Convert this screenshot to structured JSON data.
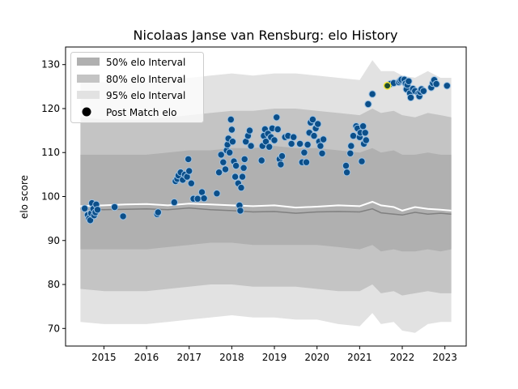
{
  "chart_data": {
    "type": "scatter",
    "title": "Nicolaas Janse van Rensburg: elo History",
    "xlabel": "",
    "ylabel": "elo score",
    "xlim": [
      2014.1,
      2023.5
    ],
    "ylim": [
      66,
      134
    ],
    "x_ticks": [
      {
        "value": 2015,
        "label": "2015"
      },
      {
        "value": 2016,
        "label": "2016"
      },
      {
        "value": 2017,
        "label": "2017"
      },
      {
        "value": 2018,
        "label": "2018"
      },
      {
        "value": 2019,
        "label": "2019"
      },
      {
        "value": 2020,
        "label": "2020"
      },
      {
        "value": 2021,
        "label": "2021"
      },
      {
        "value": 2022,
        "label": "2022"
      },
      {
        "value": 2023,
        "label": "2023"
      }
    ],
    "y_ticks": [
      70,
      80,
      90,
      100,
      110,
      120,
      130
    ],
    "grid": false,
    "legend": {
      "position": "top-left",
      "entries": [
        {
          "label": "50% elo Interval",
          "color": "#b0b0b0"
        },
        {
          "label": "80% elo Interval",
          "color": "#c4c4c4"
        },
        {
          "label": "95% elo Interval",
          "color": "#e2e2e2"
        },
        {
          "label": "Post Match elo",
          "color": "#000000"
        }
      ]
    },
    "colors": {
      "point_fill": "#0b4f8a",
      "point_edge": "#9ec4e6",
      "latest_point_fill": "#1f4e2e",
      "latest_point_edge": "#f2e63b",
      "mean_line": "#ffffff",
      "median_line": "#808080"
    },
    "bands": {
      "x": [
        2014.45,
        2015.0,
        2015.5,
        2016.0,
        2016.5,
        2017.0,
        2017.5,
        2018.0,
        2018.5,
        2019.0,
        2019.5,
        2020.0,
        2020.5,
        2021.0,
        2021.3,
        2021.5,
        2021.8,
        2022.0,
        2022.3,
        2022.6,
        2022.9,
        2023.15
      ],
      "p95_hi": [
        126.5,
        126.0,
        126.0,
        126.0,
        126.5,
        127.0,
        127.5,
        128.0,
        127.5,
        128.0,
        128.0,
        127.5,
        127.0,
        126.5,
        131.0,
        128.5,
        128.5,
        127.5,
        127.0,
        128.5,
        127.0,
        127.0
      ],
      "p80_hi": [
        118.0,
        117.5,
        117.5,
        117.5,
        118.0,
        118.5,
        119.0,
        119.5,
        119.5,
        120.0,
        120.0,
        119.5,
        119.0,
        118.5,
        120.0,
        119.0,
        119.5,
        118.5,
        118.0,
        119.0,
        118.5,
        118.0
      ],
      "p50_hi": [
        109.5,
        109.5,
        109.5,
        109.5,
        110.0,
        110.5,
        110.5,
        111.0,
        111.0,
        111.5,
        111.0,
        111.0,
        110.5,
        110.0,
        111.0,
        110.0,
        110.5,
        109.5,
        109.5,
        110.0,
        109.5,
        109.5
      ],
      "p50_lo": [
        88.0,
        88.0,
        88.0,
        88.0,
        88.5,
        89.0,
        89.5,
        89.5,
        89.0,
        89.0,
        89.0,
        89.0,
        88.5,
        88.0,
        89.0,
        87.5,
        88.0,
        87.5,
        87.5,
        88.0,
        87.5,
        88.0
      ],
      "p80_lo": [
        79.0,
        78.5,
        78.5,
        78.5,
        79.0,
        79.5,
        80.0,
        80.0,
        79.5,
        79.5,
        79.5,
        79.0,
        78.5,
        78.5,
        80.0,
        78.0,
        78.5,
        77.5,
        78.0,
        78.5,
        78.0,
        78.0
      ],
      "p95_lo": [
        71.5,
        71.0,
        71.0,
        71.0,
        71.5,
        72.0,
        72.5,
        73.0,
        72.5,
        72.5,
        72.0,
        72.0,
        71.0,
        70.5,
        73.5,
        71.0,
        71.5,
        69.5,
        69.0,
        71.0,
        71.5,
        71.5
      ],
      "mean": [
        97.8,
        98.0,
        98.2,
        98.3,
        98.0,
        98.4,
        98.2,
        98.0,
        97.8,
        98.0,
        97.5,
        97.7,
        98.0,
        97.8,
        98.8,
        98.0,
        97.6,
        96.8,
        97.6,
        97.2,
        97.0,
        96.8
      ],
      "median": [
        97.2,
        97.0,
        97.1,
        97.2,
        97.0,
        97.4,
        97.0,
        96.8,
        96.5,
        96.6,
        96.2,
        96.5,
        96.6,
        96.5,
        97.2,
        96.3,
        96.0,
        95.8,
        96.4,
        96.0,
        96.2,
        96.0
      ]
    },
    "points": [
      {
        "x": 2014.55,
        "y": 97.3
      },
      {
        "x": 2014.62,
        "y": 95.8
      },
      {
        "x": 2014.65,
        "y": 95.0
      },
      {
        "x": 2014.68,
        "y": 94.6
      },
      {
        "x": 2014.7,
        "y": 96.2
      },
      {
        "x": 2014.72,
        "y": 98.5
      },
      {
        "x": 2014.75,
        "y": 97.2
      },
      {
        "x": 2014.77,
        "y": 95.7
      },
      {
        "x": 2014.8,
        "y": 96.4
      },
      {
        "x": 2014.82,
        "y": 98.2
      },
      {
        "x": 2014.85,
        "y": 97.0
      },
      {
        "x": 2015.25,
        "y": 97.6
      },
      {
        "x": 2015.45,
        "y": 95.5
      },
      {
        "x": 2016.25,
        "y": 96.0
      },
      {
        "x": 2016.27,
        "y": 96.4
      },
      {
        "x": 2016.65,
        "y": 98.7
      },
      {
        "x": 2016.68,
        "y": 103.5
      },
      {
        "x": 2016.72,
        "y": 104.0
      },
      {
        "x": 2016.75,
        "y": 104.8
      },
      {
        "x": 2016.8,
        "y": 105.5
      },
      {
        "x": 2016.85,
        "y": 103.8
      },
      {
        "x": 2016.9,
        "y": 105.0
      },
      {
        "x": 2016.95,
        "y": 104.5
      },
      {
        "x": 2016.98,
        "y": 108.5
      },
      {
        "x": 2017.0,
        "y": 105.8
      },
      {
        "x": 2017.05,
        "y": 103.0
      },
      {
        "x": 2017.1,
        "y": 99.5
      },
      {
        "x": 2017.2,
        "y": 99.5
      },
      {
        "x": 2017.3,
        "y": 101.0
      },
      {
        "x": 2017.35,
        "y": 99.6
      },
      {
        "x": 2017.65,
        "y": 100.7
      },
      {
        "x": 2017.7,
        "y": 105.5
      },
      {
        "x": 2017.75,
        "y": 109.5
      },
      {
        "x": 2017.8,
        "y": 107.8
      },
      {
        "x": 2017.85,
        "y": 106.2
      },
      {
        "x": 2017.88,
        "y": 110.5
      },
      {
        "x": 2017.9,
        "y": 111.8
      },
      {
        "x": 2017.92,
        "y": 113.2
      },
      {
        "x": 2017.95,
        "y": 110.0
      },
      {
        "x": 2017.98,
        "y": 117.5
      },
      {
        "x": 2018.0,
        "y": 115.2
      },
      {
        "x": 2018.02,
        "y": 112.5
      },
      {
        "x": 2018.05,
        "y": 108.0
      },
      {
        "x": 2018.08,
        "y": 104.5
      },
      {
        "x": 2018.1,
        "y": 107.0
      },
      {
        "x": 2018.15,
        "y": 103.0
      },
      {
        "x": 2018.18,
        "y": 98.0
      },
      {
        "x": 2018.2,
        "y": 96.8
      },
      {
        "x": 2018.22,
        "y": 102.0
      },
      {
        "x": 2018.25,
        "y": 104.5
      },
      {
        "x": 2018.28,
        "y": 106.5
      },
      {
        "x": 2018.3,
        "y": 108.5
      },
      {
        "x": 2018.33,
        "y": 112.5
      },
      {
        "x": 2018.38,
        "y": 113.8
      },
      {
        "x": 2018.42,
        "y": 115.0
      },
      {
        "x": 2018.45,
        "y": 111.5
      },
      {
        "x": 2018.7,
        "y": 108.2
      },
      {
        "x": 2018.72,
        "y": 111.5
      },
      {
        "x": 2018.75,
        "y": 113.8
      },
      {
        "x": 2018.78,
        "y": 115.3
      },
      {
        "x": 2018.8,
        "y": 112.5
      },
      {
        "x": 2018.85,
        "y": 114.3
      },
      {
        "x": 2018.88,
        "y": 111.3
      },
      {
        "x": 2018.92,
        "y": 113.5
      },
      {
        "x": 2018.95,
        "y": 115.5
      },
      {
        "x": 2019.0,
        "y": 112.8
      },
      {
        "x": 2019.05,
        "y": 118.0
      },
      {
        "x": 2019.08,
        "y": 115.3
      },
      {
        "x": 2019.12,
        "y": 108.5
      },
      {
        "x": 2019.15,
        "y": 107.3
      },
      {
        "x": 2019.18,
        "y": 109.2
      },
      {
        "x": 2019.25,
        "y": 113.5
      },
      {
        "x": 2019.32,
        "y": 113.8
      },
      {
        "x": 2019.4,
        "y": 112.0
      },
      {
        "x": 2019.45,
        "y": 113.5
      },
      {
        "x": 2019.6,
        "y": 112.0
      },
      {
        "x": 2019.65,
        "y": 107.8
      },
      {
        "x": 2019.7,
        "y": 110.0
      },
      {
        "x": 2019.75,
        "y": 107.8
      },
      {
        "x": 2019.78,
        "y": 111.8
      },
      {
        "x": 2019.82,
        "y": 114.5
      },
      {
        "x": 2019.85,
        "y": 116.8
      },
      {
        "x": 2019.9,
        "y": 117.5
      },
      {
        "x": 2019.93,
        "y": 113.8
      },
      {
        "x": 2019.97,
        "y": 115.5
      },
      {
        "x": 2020.02,
        "y": 116.5
      },
      {
        "x": 2020.05,
        "y": 112.5
      },
      {
        "x": 2020.08,
        "y": 111.5
      },
      {
        "x": 2020.12,
        "y": 109.8
      },
      {
        "x": 2020.15,
        "y": 113.0
      },
      {
        "x": 2020.68,
        "y": 107.0
      },
      {
        "x": 2020.7,
        "y": 105.5
      },
      {
        "x": 2020.78,
        "y": 109.8
      },
      {
        "x": 2020.8,
        "y": 111.5
      },
      {
        "x": 2020.85,
        "y": 113.8
      },
      {
        "x": 2020.92,
        "y": 116.0
      },
      {
        "x": 2020.95,
        "y": 115.5
      },
      {
        "x": 2021.0,
        "y": 113.5
      },
      {
        "x": 2021.02,
        "y": 114.5
      },
      {
        "x": 2021.05,
        "y": 108.0
      },
      {
        "x": 2021.08,
        "y": 116.0
      },
      {
        "x": 2021.1,
        "y": 112.0
      },
      {
        "x": 2021.13,
        "y": 114.5
      },
      {
        "x": 2021.15,
        "y": 112.8
      },
      {
        "x": 2021.2,
        "y": 121.0
      },
      {
        "x": 2021.3,
        "y": 123.3
      },
      {
        "x": 2021.72,
        "y": 125.6
      },
      {
        "x": 2021.8,
        "y": 125.8
      },
      {
        "x": 2021.92,
        "y": 126.0
      },
      {
        "x": 2021.95,
        "y": 126.3
      },
      {
        "x": 2021.98,
        "y": 126.6
      },
      {
        "x": 2022.05,
        "y": 126.6
      },
      {
        "x": 2022.08,
        "y": 125.7
      },
      {
        "x": 2022.1,
        "y": 124.4
      },
      {
        "x": 2022.12,
        "y": 125.4
      },
      {
        "x": 2022.15,
        "y": 126.2
      },
      {
        "x": 2022.18,
        "y": 123.5
      },
      {
        "x": 2022.2,
        "y": 122.5
      },
      {
        "x": 2022.25,
        "y": 124.5
      },
      {
        "x": 2022.3,
        "y": 124.0
      },
      {
        "x": 2022.38,
        "y": 123.5
      },
      {
        "x": 2022.4,
        "y": 122.8
      },
      {
        "x": 2022.42,
        "y": 123.8
      },
      {
        "x": 2022.45,
        "y": 124.4
      },
      {
        "x": 2022.5,
        "y": 124.0
      },
      {
        "x": 2022.68,
        "y": 124.8
      },
      {
        "x": 2022.72,
        "y": 125.8
      },
      {
        "x": 2022.75,
        "y": 126.5
      },
      {
        "x": 2022.8,
        "y": 125.6
      },
      {
        "x": 2023.05,
        "y": 125.2
      }
    ],
    "latest_point": {
      "x": 2021.65,
      "y": 125.2
    }
  }
}
